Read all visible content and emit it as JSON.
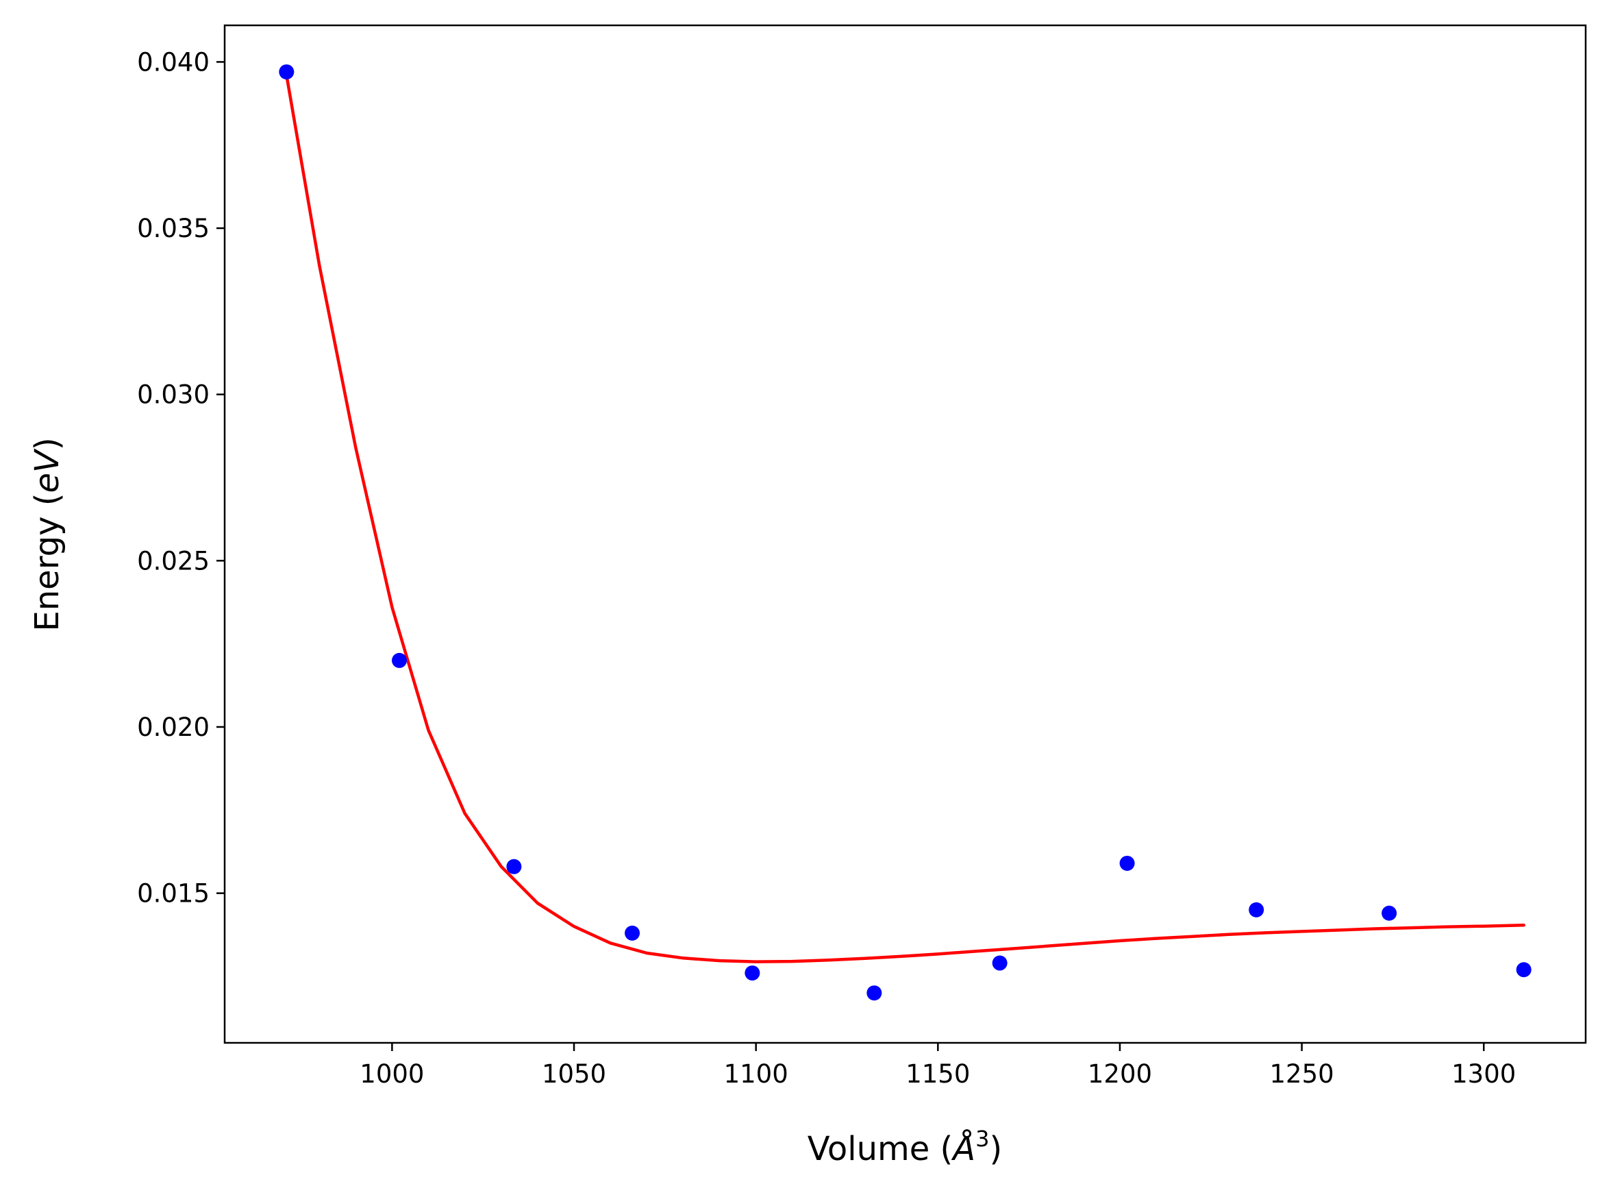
{
  "chart_data": {
    "type": "scatter",
    "title": "",
    "xlabel": {
      "prefix": "Volume (",
      "symbol": "Å",
      "sup": "3",
      "suffix": ")"
    },
    "ylabel": {
      "prefix": "Energy (",
      "symbol": "eV",
      "suffix": ")"
    },
    "xlim": [
      954,
      1328
    ],
    "ylim": [
      0.0105,
      0.0411
    ],
    "xticks": [
      1000,
      1050,
      1100,
      1150,
      1200,
      1250,
      1300
    ],
    "xtick_labels": [
      "1000",
      "1050",
      "1100",
      "1150",
      "1200",
      "1250",
      "1300"
    ],
    "yticks": [
      0.015,
      0.02,
      0.025,
      0.03,
      0.035,
      0.04
    ],
    "ytick_labels": [
      "0.015",
      "0.020",
      "0.025",
      "0.030",
      "0.035",
      "0.040"
    ],
    "grid": false,
    "series": [
      {
        "kind": "scatter",
        "color": "#0000ff",
        "points": [
          [
            971,
            0.0397
          ],
          [
            1002,
            0.022
          ],
          [
            1033.5,
            0.0158
          ],
          [
            1066,
            0.0138
          ],
          [
            1099,
            0.0126
          ],
          [
            1132.5,
            0.012
          ],
          [
            1167,
            0.0129
          ],
          [
            1202,
            0.0159
          ],
          [
            1237.5,
            0.0145
          ],
          [
            1274,
            0.0144
          ],
          [
            1311,
            0.0127
          ]
        ]
      },
      {
        "kind": "line",
        "color": "#ff0000",
        "points": [
          [
            971,
            0.0396
          ],
          [
            980,
            0.0339
          ],
          [
            990,
            0.0284
          ],
          [
            1000,
            0.0236
          ],
          [
            1010,
            0.0199
          ],
          [
            1020,
            0.0174
          ],
          [
            1030,
            0.0158
          ],
          [
            1040,
            0.0147
          ],
          [
            1050,
            0.014
          ],
          [
            1060,
            0.0135
          ],
          [
            1070,
            0.0132
          ],
          [
            1080,
            0.01305
          ],
          [
            1090,
            0.01297
          ],
          [
            1100,
            0.01294
          ],
          [
            1110,
            0.01295
          ],
          [
            1120,
            0.01299
          ],
          [
            1130,
            0.01304
          ],
          [
            1140,
            0.0131
          ],
          [
            1150,
            0.01317
          ],
          [
            1160,
            0.01325
          ],
          [
            1170,
            0.01333
          ],
          [
            1180,
            0.01341
          ],
          [
            1190,
            0.01349
          ],
          [
            1200,
            0.01357
          ],
          [
            1210,
            0.01364
          ],
          [
            1220,
            0.0137
          ],
          [
            1230,
            0.01376
          ],
          [
            1240,
            0.01381
          ],
          [
            1250,
            0.01385
          ],
          [
            1260,
            0.01389
          ],
          [
            1270,
            0.01393
          ],
          [
            1280,
            0.01396
          ],
          [
            1290,
            0.01399
          ],
          [
            1300,
            0.01401
          ],
          [
            1311,
            0.01404
          ]
        ]
      }
    ]
  }
}
